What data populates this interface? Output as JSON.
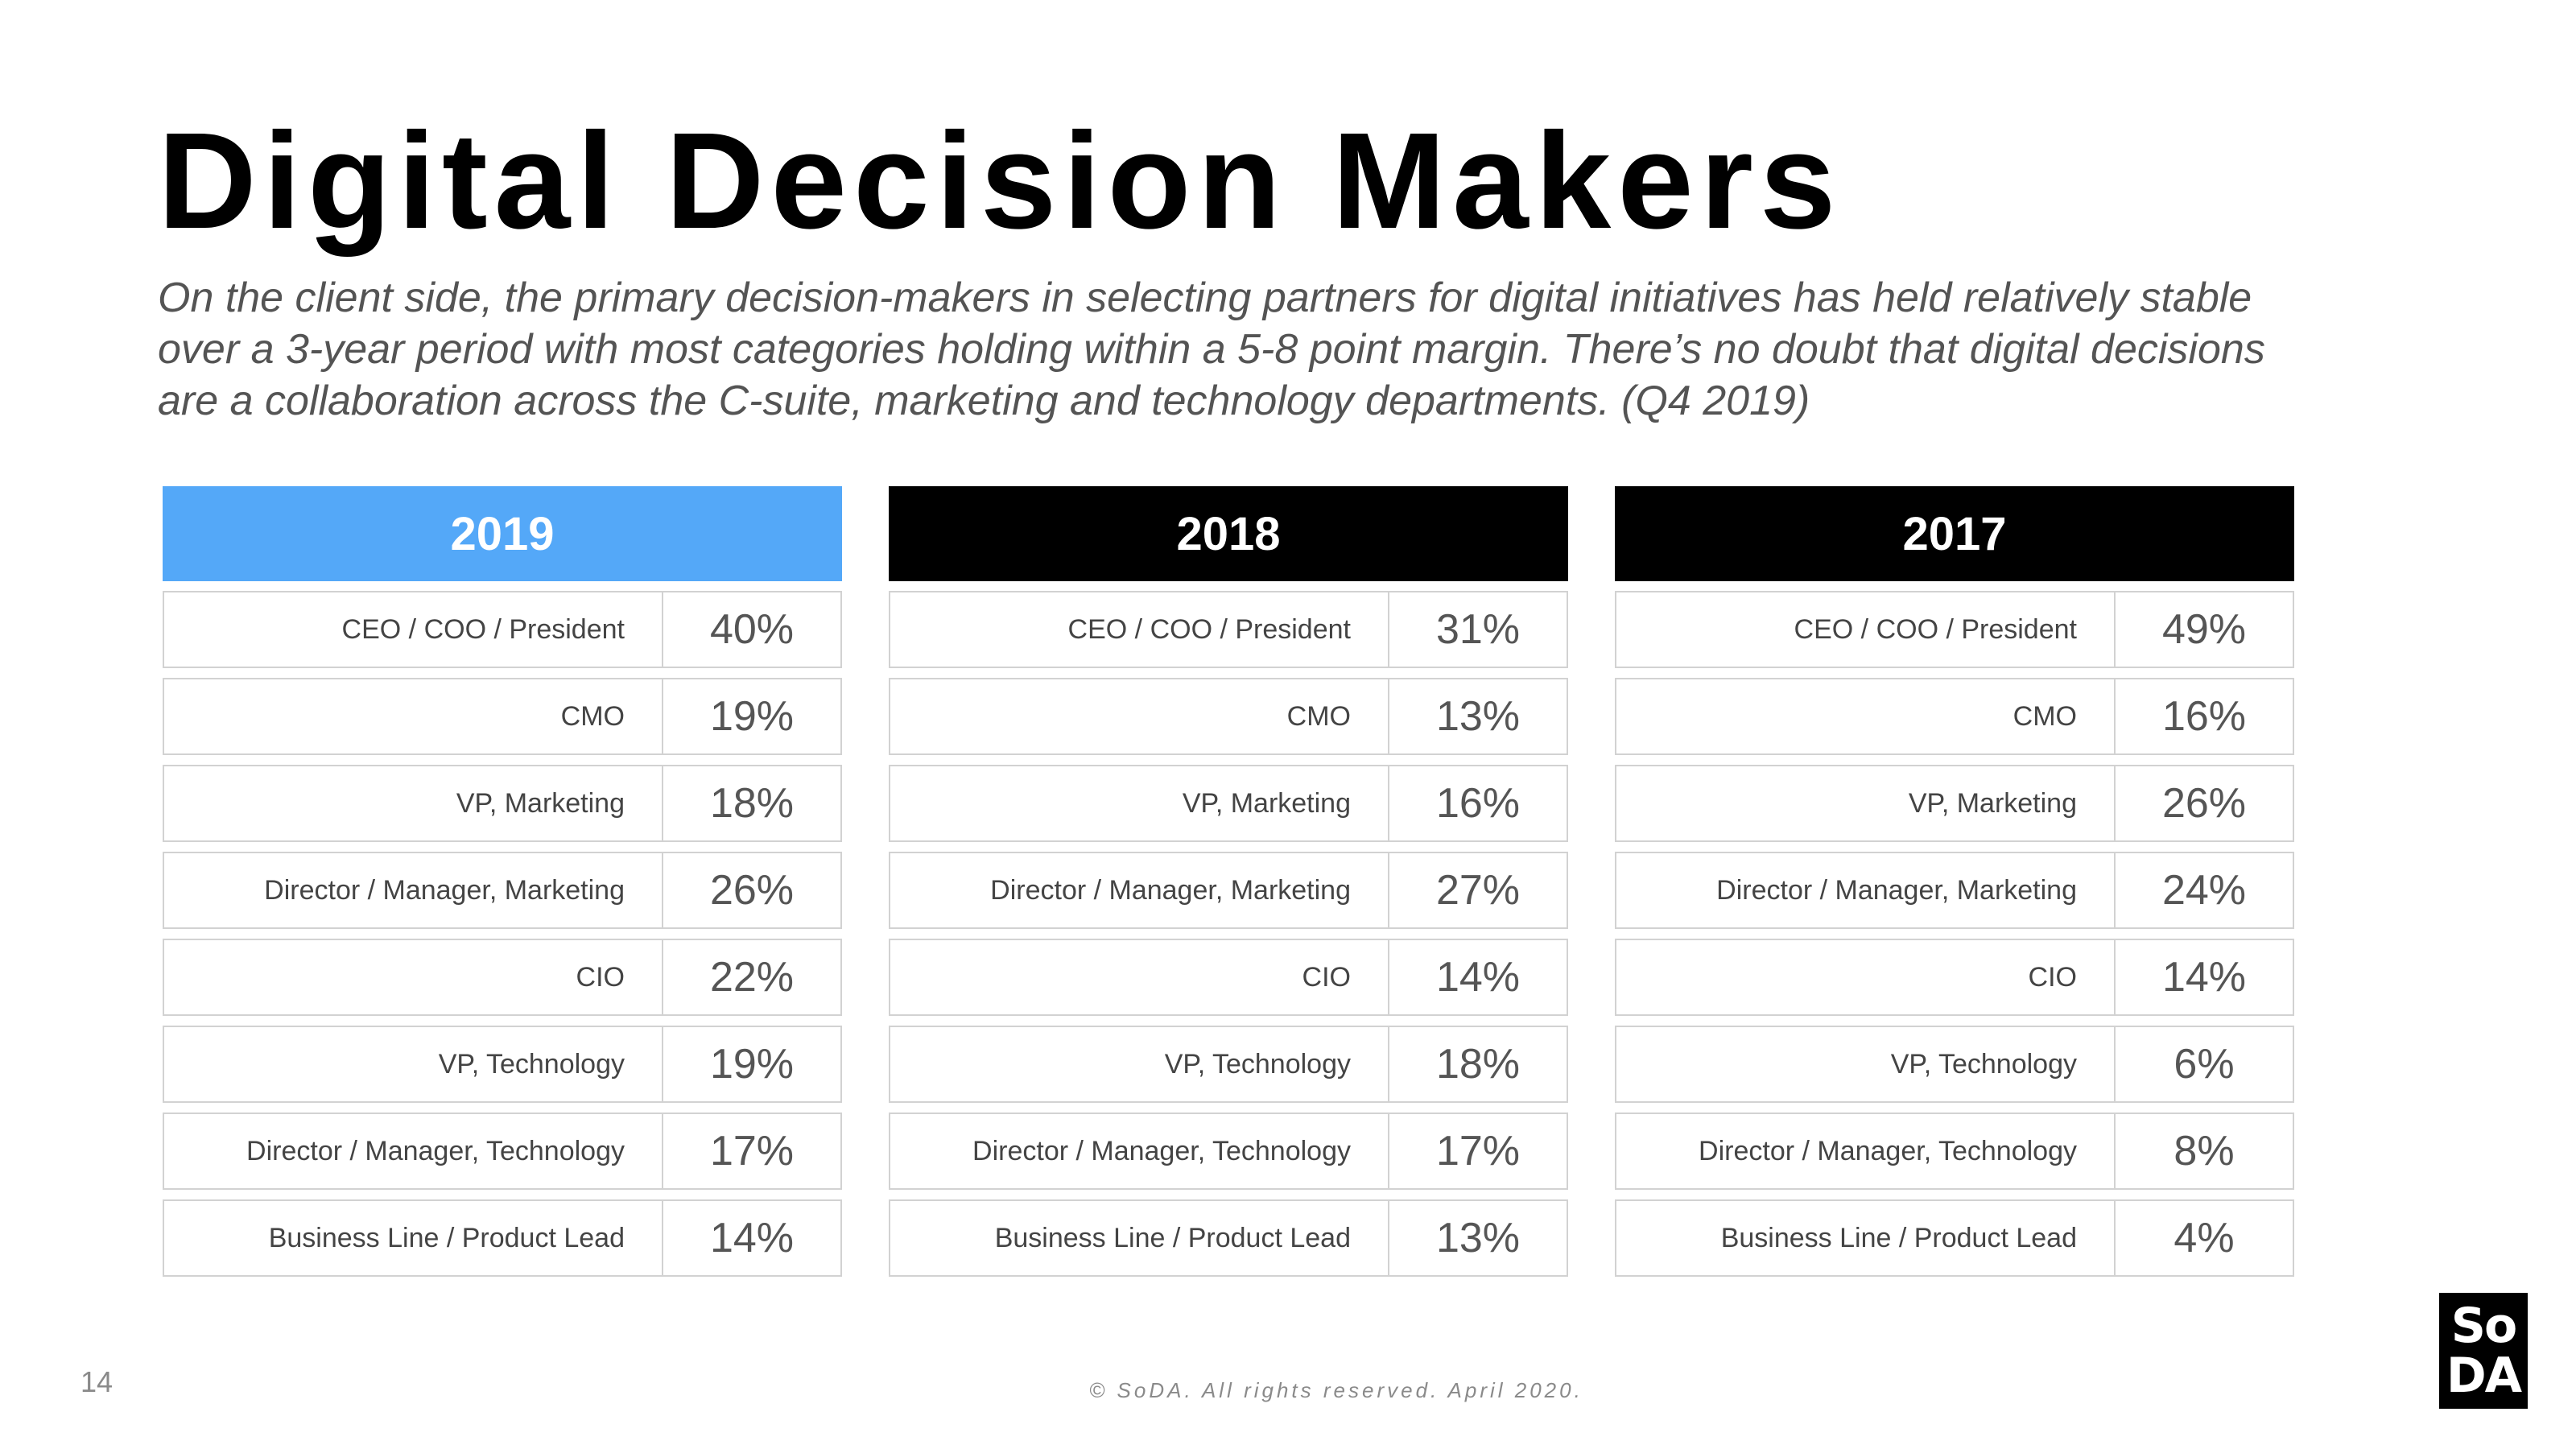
{
  "title": "Digital Decision Makers",
  "subtitle": "On the client side, the primary decision-makers in selecting partners for digital initiatives has held relatively stable over  a 3-year period with most categories holding within a 5-8 point margin. There’s no doubt that digital decisions are a collaboration across the C-suite, marketing and technology departments. (Q4 2019)",
  "colors": {
    "header_2019": "#54a8f8",
    "header_other": "#000000"
  },
  "tables": [
    {
      "year": "2019",
      "rows": [
        {
          "label": "CEO / COO / President",
          "value": "40%"
        },
        {
          "label": "CMO",
          "value": "19%"
        },
        {
          "label": "VP, Marketing",
          "value": "18%"
        },
        {
          "label": "Director / Manager, Marketing",
          "value": "26%"
        },
        {
          "label": "CIO",
          "value": "22%"
        },
        {
          "label": "VP, Technology",
          "value": "19%"
        },
        {
          "label": "Director / Manager, Technology",
          "value": "17%"
        },
        {
          "label": "Business Line / Product Lead",
          "value": "14%"
        }
      ]
    },
    {
      "year": "2018",
      "rows": [
        {
          "label": "CEO / COO / President",
          "value": "31%"
        },
        {
          "label": "CMO",
          "value": "13%"
        },
        {
          "label": "VP, Marketing",
          "value": "16%"
        },
        {
          "label": "Director / Manager, Marketing",
          "value": "27%"
        },
        {
          "label": "CIO",
          "value": "14%"
        },
        {
          "label": "VP, Technology",
          "value": "18%"
        },
        {
          "label": "Director / Manager, Technology",
          "value": "17%"
        },
        {
          "label": "Business Line / Product Lead",
          "value": "13%"
        }
      ]
    },
    {
      "year": "2017",
      "rows": [
        {
          "label": "CEO / COO / President",
          "value": "49%"
        },
        {
          "label": "CMO",
          "value": "16%"
        },
        {
          "label": "VP, Marketing",
          "value": "26%"
        },
        {
          "label": "Director / Manager, Marketing",
          "value": "24%"
        },
        {
          "label": "CIO",
          "value": "14%"
        },
        {
          "label": "VP, Technology",
          "value": "6%"
        },
        {
          "label": "Director / Manager, Technology",
          "value": "8%"
        },
        {
          "label": "Business Line / Product Lead",
          "value": "4%"
        }
      ]
    }
  ],
  "page_number": "14",
  "footer": "© SoDA. All rights reserved. April 2020.",
  "logo": {
    "line1": "So",
    "line2": "DA"
  }
}
